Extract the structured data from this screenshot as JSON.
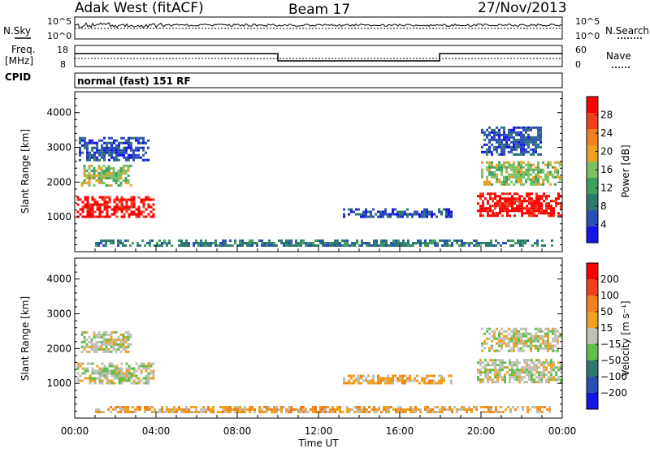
{
  "header": {
    "station": "Adak West (fitACF)",
    "beam": "Beam 17",
    "date": "27/Nov/2013"
  },
  "noise_panel": {
    "left_label": "N.Sky",
    "right_label": "N.Search",
    "ticks_left": [
      "10^5",
      "10^0"
    ],
    "ticks_right": [
      "10^5",
      "10^0"
    ]
  },
  "freq_panel": {
    "left_label_1": "Freq.",
    "left_label_2": "[MHz]",
    "cpid_label": "CPID",
    "right_label": "Nave",
    "ticks_left": [
      "18",
      "8"
    ],
    "ticks_right": [
      "60",
      "0"
    ]
  },
  "mode_text": "normal (fast) 151 RF",
  "colors": {
    "power_scale": [
      "#1515e8",
      "#2a50b4",
      "#2f7a70",
      "#3fa060",
      "#7cc060",
      "#f0a020",
      "#f08020",
      "#f04020",
      "#ff0000"
    ],
    "velocity_scale": [
      "#1515e8",
      "#2a50b4",
      "#2f7a70",
      "#5fbf4a",
      "#c0c0b8",
      "#f0a020",
      "#f08020",
      "#f04020",
      "#ff0000"
    ]
  },
  "chart_data": [
    {
      "type": "heatmap",
      "name": "power",
      "ylabel": "Slant Range [km]",
      "yticks": [
        1000,
        2000,
        3000,
        4000
      ],
      "ylim": [
        0,
        4600
      ],
      "xlim": [
        0,
        24
      ],
      "colorbar_label": "Power [dB]",
      "colorbar_ticks": [
        "28",
        "24",
        "20",
        "16",
        "12",
        "8",
        "4"
      ],
      "regions": [
        {
          "t0": 0.1,
          "t1": 3.9,
          "r0": 1000,
          "r1": 1600,
          "level": 8
        },
        {
          "t0": 0.3,
          "t1": 2.8,
          "r0": 1900,
          "r1": 2500,
          "level": 4
        },
        {
          "t0": 0.2,
          "t1": 3.6,
          "r0": 2600,
          "r1": 3300,
          "level": 1
        },
        {
          "t0": 13.2,
          "t1": 18.6,
          "r0": 1000,
          "r1": 1250,
          "level": 1
        },
        {
          "t0": 19.8,
          "t1": 23.9,
          "r0": 1000,
          "r1": 1700,
          "level": 8
        },
        {
          "t0": 20.0,
          "t1": 23.9,
          "r0": 1900,
          "r1": 2600,
          "level": 4
        },
        {
          "t0": 20.0,
          "t1": 23.0,
          "r0": 2800,
          "r1": 3600,
          "level": 1
        },
        {
          "t0": 1.0,
          "t1": 23.5,
          "r0": 150,
          "r1": 350,
          "level": 2
        }
      ]
    },
    {
      "type": "heatmap",
      "name": "velocity",
      "ylabel": "Slant Range [km]",
      "yticks": [
        1000,
        2000,
        3000,
        4000
      ],
      "ylim": [
        0,
        4600
      ],
      "xlim": [
        0,
        24
      ],
      "xlabel": "Time UT",
      "xticks": [
        "00:00",
        "04:00",
        "08:00",
        "12:00",
        "16:00",
        "20:00",
        "00:00"
      ],
      "colorbar_label": "Velocity [m s⁻¹]",
      "colorbar_ticks": [
        "200",
        "100",
        "50",
        "15",
        "−15",
        "−50",
        "−100",
        "−200"
      ],
      "regions": [
        {
          "t0": 0.1,
          "t1": 3.9,
          "r0": 1000,
          "r1": 1600,
          "level": 4
        },
        {
          "t0": 0.3,
          "t1": 2.8,
          "r0": 1900,
          "r1": 2500,
          "level": 4
        },
        {
          "t0": 13.2,
          "t1": 18.6,
          "r0": 1000,
          "r1": 1250,
          "level": 5
        },
        {
          "t0": 19.8,
          "t1": 23.9,
          "r0": 1000,
          "r1": 1700,
          "level": 4
        },
        {
          "t0": 20.0,
          "t1": 23.9,
          "r0": 1900,
          "r1": 2600,
          "level": 4
        },
        {
          "t0": 1.0,
          "t1": 23.5,
          "r0": 150,
          "r1": 350,
          "level": 5
        }
      ]
    }
  ]
}
